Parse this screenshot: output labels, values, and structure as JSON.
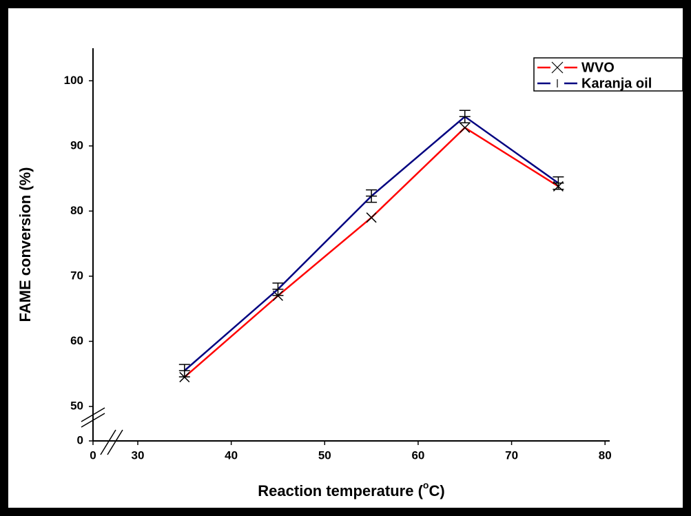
{
  "chart_data": {
    "type": "line",
    "xlabel": {
      "before": "Reaction temperature (",
      "sup": "o",
      "after": "C)"
    },
    "ylabel": "FAME conversion (%)",
    "x": [
      35,
      45,
      55,
      65,
      75
    ],
    "series": [
      {
        "name": "WVO",
        "color": "#ff0000",
        "marker": "x",
        "values": [
          54.5,
          67,
          79,
          92.8,
          83.8
        ]
      },
      {
        "name": "Karanja oil",
        "color": "#000080",
        "marker": "bar",
        "values": [
          55.5,
          68,
          82.3,
          94.5,
          84.3
        ]
      }
    ],
    "xlim": [
      0,
      80.5
    ],
    "xticks": [
      0,
      30,
      40,
      50,
      60,
      70,
      80
    ],
    "xbreak": [
      0,
      30
    ],
    "ylim": [
      0,
      105
    ],
    "yticks": [
      0,
      50,
      60,
      70,
      80,
      90,
      100
    ],
    "ybreak": [
      0,
      50
    ],
    "legend": "upper right"
  }
}
